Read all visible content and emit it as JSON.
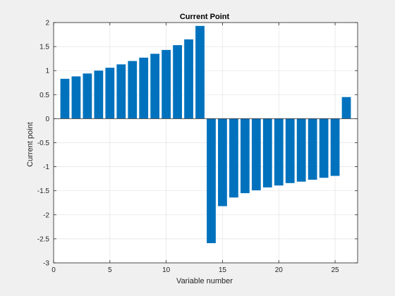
{
  "chart_data": {
    "type": "bar",
    "title": "Current Point",
    "xlabel": "Variable number",
    "ylabel": "Current point",
    "xlim": [
      0,
      27
    ],
    "ylim": [
      -3,
      2
    ],
    "xticks": [
      0,
      5,
      10,
      15,
      20,
      25
    ],
    "yticks": [
      -3,
      -2.5,
      -2,
      -1.5,
      -1,
      -0.5,
      0,
      0.5,
      1,
      1.5,
      2
    ],
    "xtick_labels": [
      "0",
      "5",
      "10",
      "15",
      "20",
      "25"
    ],
    "ytick_labels": [
      "-3",
      "-2.5",
      "-2",
      "-1.5",
      "-1",
      "-0.5",
      "0",
      "0.5",
      "1",
      "1.5",
      "2"
    ],
    "grid": true,
    "bar_color": "#0072BD",
    "x": [
      1,
      2,
      3,
      4,
      5,
      6,
      7,
      8,
      9,
      10,
      11,
      12,
      13,
      14,
      15,
      16,
      17,
      18,
      19,
      20,
      21,
      22,
      23,
      24,
      25,
      26
    ],
    "values": [
      0.83,
      0.88,
      0.94,
      1.0,
      1.06,
      1.13,
      1.2,
      1.27,
      1.35,
      1.43,
      1.53,
      1.65,
      1.93,
      -2.59,
      -1.82,
      -1.64,
      -1.55,
      -1.49,
      -1.43,
      -1.39,
      -1.34,
      -1.31,
      -1.27,
      -1.23,
      -1.19,
      0.45
    ]
  }
}
